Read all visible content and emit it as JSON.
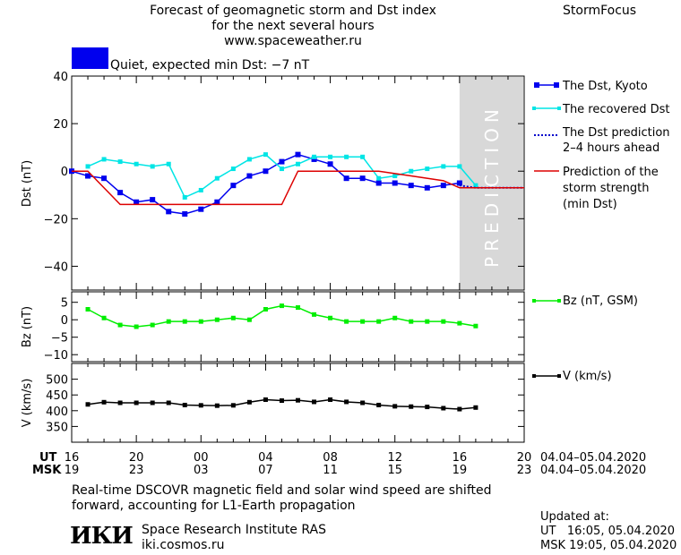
{
  "header": {
    "title_line1": "Forecast of geomagnetic storm and Dst index",
    "title_line2": "for the next several hours",
    "url": "www.spaceweather.ru",
    "brand": "StormFocus",
    "status_text": "Quiet, expected min Dst: −7 nT",
    "status_color": "#0000ee"
  },
  "prediction_label": "PREDICTION",
  "time_axis": {
    "ut_label": "UT",
    "msk_label": "MSK",
    "ut_ticks": [
      "16",
      "20",
      "00",
      "04",
      "08",
      "12",
      "16",
      "20"
    ],
    "msk_ticks": [
      "19",
      "23",
      "03",
      "07",
      "11",
      "15",
      "19",
      "23"
    ],
    "ut_date": "04.04–05.04.2020",
    "msk_date": "04.04–05.04.2020"
  },
  "legend": {
    "dst_kyoto": "The Dst, Kyoto",
    "dst_recovered": "The recovered Dst",
    "dst_prediction_1": "The Dst prediction",
    "dst_prediction_2": "2–4 hours ahead",
    "storm_1": "Prediction of the",
    "storm_2": "storm strength",
    "storm_3": "(min Dst)",
    "bz": "Bz (nT, GSM)",
    "v": "V (km/s)"
  },
  "footer": {
    "note_line1": "Real-time DSCOVR magnetic field and solar wind speed are shifted",
    "note_line2": "forward, accounting for L1-Earth propagation",
    "institute": "Space Research Institute RAS",
    "site": "iki.cosmos.ru",
    "logo_text": "ИКИ",
    "updated_label": "Updated at:",
    "updated_ut": "UT   16:05, 05.04.2020",
    "updated_msk": "MSK 19:05, 05.04.2020"
  },
  "colors": {
    "kyoto": "#0000ee",
    "recovered": "#00e5e5",
    "prediction_dots": "#0000cc",
    "storm": "#dd0000",
    "bz": "#00ee00",
    "v": "#000000",
    "prediction_band": "#d8d8d8"
  },
  "chart_data": [
    {
      "type": "line",
      "ylabel": "Dst (nT)",
      "xlim": [
        16,
        44
      ],
      "ylim": [
        -50,
        40
      ],
      "yticks": [
        40,
        20,
        0,
        -20,
        -40
      ],
      "prediction_start": 40,
      "series": [
        {
          "name": "The Dst, Kyoto",
          "key": "kyoto",
          "x": [
            16,
            17,
            18,
            19,
            20,
            21,
            22,
            23,
            24,
            25,
            26,
            27,
            28,
            29,
            30,
            31,
            32,
            33,
            34,
            35,
            36,
            37,
            38,
            39,
            40
          ],
          "y": [
            0,
            -2,
            -3,
            -9,
            -13,
            -12,
            -17,
            -18,
            -16,
            -13,
            -6,
            -2,
            0,
            4,
            7,
            5,
            3,
            -3,
            -3,
            -5,
            -5,
            -6,
            -7,
            -6,
            -5
          ]
        },
        {
          "name": "The recovered Dst",
          "key": "recovered",
          "x": [
            17,
            18,
            19,
            20,
            21,
            22,
            23,
            24,
            25,
            26,
            27,
            28,
            29,
            30,
            31,
            32,
            33,
            34,
            35,
            36,
            37,
            38,
            39,
            40,
            41
          ],
          "y": [
            2,
            5,
            4,
            3,
            2,
            3,
            -11,
            -8,
            -3,
            1,
            5,
            7,
            1,
            3,
            6,
            6,
            6,
            6,
            -3,
            -2,
            0,
            1,
            2,
            2,
            -6
          ]
        },
        {
          "name": "The Dst prediction 2–4 hours ahead",
          "key": "prediction",
          "x": [
            40,
            41,
            42,
            43,
            44
          ],
          "y": [
            -6,
            -7,
            -7,
            -7,
            -7
          ]
        },
        {
          "name": "Prediction of the storm strength (min Dst)",
          "key": "storm",
          "x": [
            16,
            17,
            19,
            26,
            29,
            30,
            33,
            35,
            37,
            39,
            40,
            44
          ],
          "y": [
            0,
            0,
            -14,
            -14,
            -14,
            0,
            0,
            0,
            -2,
            -4,
            -7,
            -7
          ]
        }
      ]
    },
    {
      "type": "line",
      "ylabel": "Bz (nT)",
      "xlim": [
        16,
        44
      ],
      "ylim": [
        -12,
        8
      ],
      "yticks": [
        5,
        0,
        -5,
        -10
      ],
      "series": [
        {
          "name": "Bz (nT, GSM)",
          "key": "bz",
          "x": [
            17,
            18,
            19,
            20,
            21,
            22,
            23,
            24,
            25,
            26,
            27,
            28,
            29,
            30,
            31,
            32,
            33,
            34,
            35,
            36,
            37,
            38,
            39,
            40,
            41
          ],
          "y": [
            3,
            0.5,
            -1.5,
            -2,
            -1.5,
            -0.5,
            -0.5,
            -0.5,
            0,
            0.5,
            0,
            3,
            4,
            3.5,
            1.5,
            0.5,
            -0.5,
            -0.5,
            -0.5,
            0.5,
            -0.5,
            -0.5,
            -0.5,
            -1,
            -1.8
          ]
        }
      ]
    },
    {
      "type": "line",
      "ylabel": "V (km/s)",
      "xlim": [
        16,
        44
      ],
      "ylim": [
        300,
        550
      ],
      "yticks": [
        500,
        450,
        400,
        350
      ],
      "series": [
        {
          "name": "V (km/s)",
          "key": "v",
          "x": [
            17,
            18,
            19,
            20,
            21,
            22,
            23,
            24,
            25,
            26,
            27,
            28,
            29,
            30,
            31,
            32,
            33,
            34,
            35,
            36,
            37,
            38,
            39,
            40,
            41
          ],
          "y": [
            420,
            427,
            425,
            425,
            425,
            425,
            418,
            417,
            416,
            417,
            427,
            435,
            432,
            433,
            428,
            435,
            428,
            425,
            418,
            414,
            413,
            412,
            408,
            405,
            410
          ]
        }
      ]
    }
  ]
}
